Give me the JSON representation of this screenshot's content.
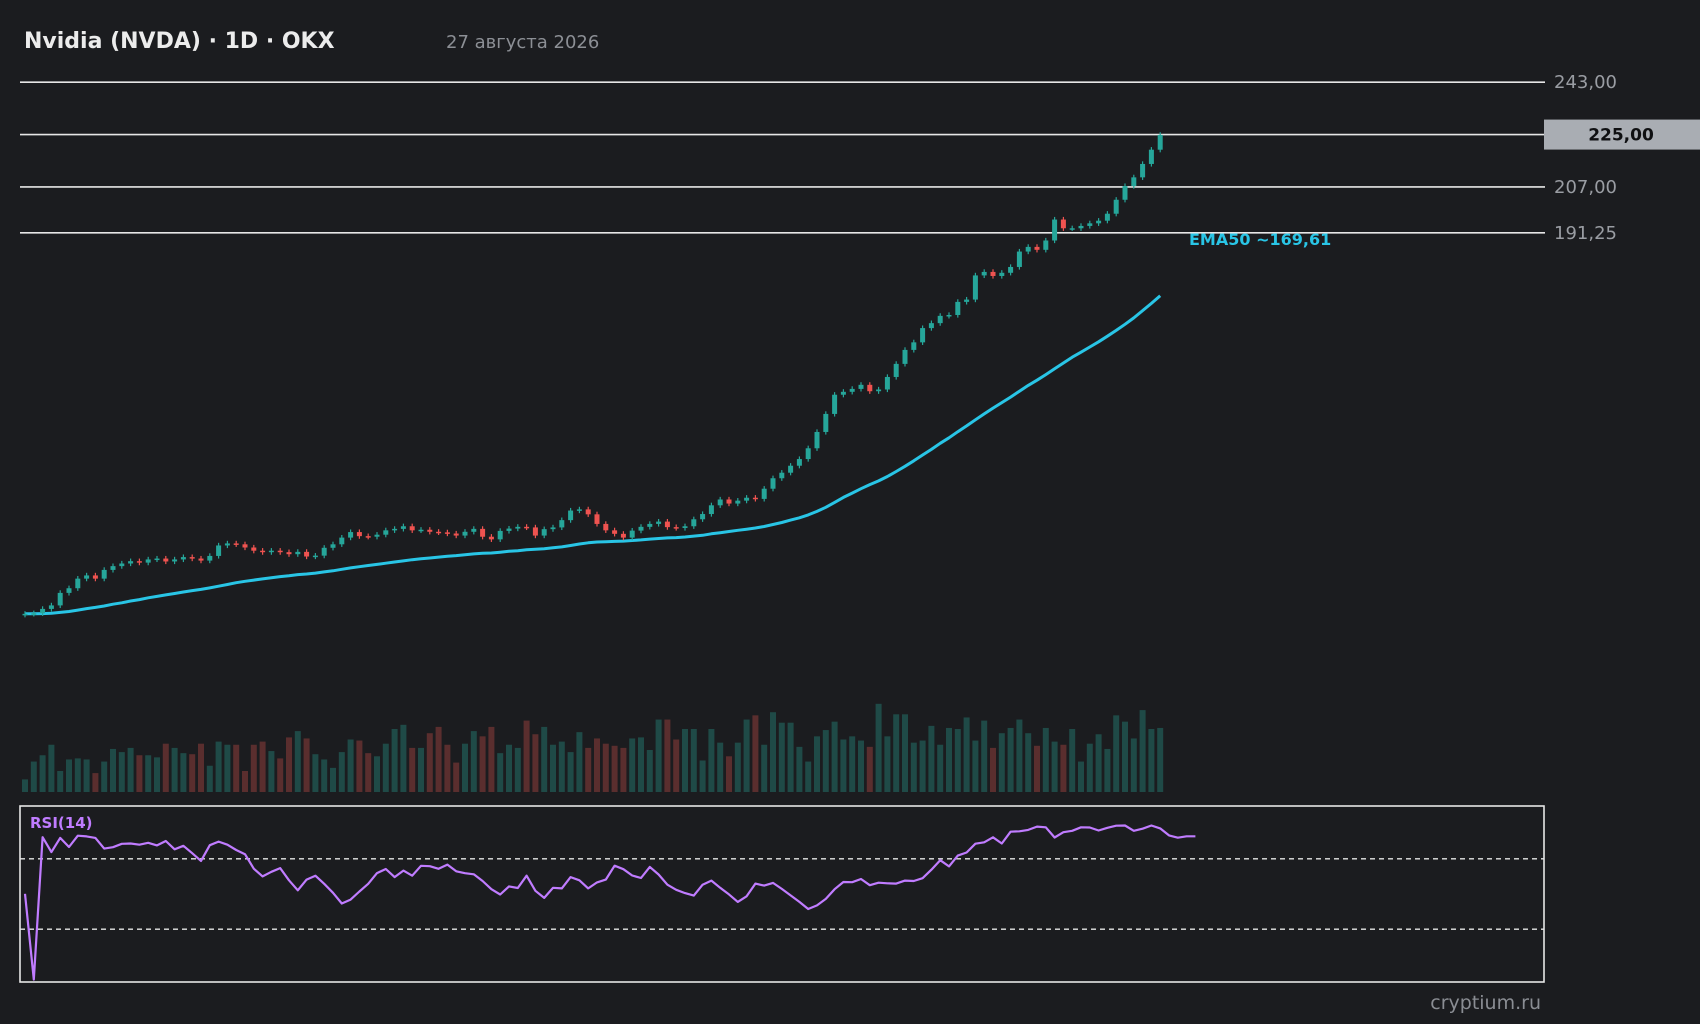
{
  "header": {
    "title": "Nvidia (NVDA) · 1D · OKX",
    "date": "27 августа 2026"
  },
  "levels": [
    {
      "value": 243.0,
      "label": "243,00"
    },
    {
      "value": 207.0,
      "label": "207,00"
    },
    {
      "value": 191.25,
      "label": "191,25"
    }
  ],
  "current_price": {
    "value": 225.0,
    "label": "225,00"
  },
  "ema": {
    "label": "EMA50 ~169,61"
  },
  "rsi": {
    "label": "RSI(14)"
  },
  "watermark": "cryptium.ru",
  "colors": {
    "background": "#1b1c1f",
    "up": "#26a69a",
    "down": "#ef5350",
    "ema": "#29c5e6",
    "rsi": "#c07cff",
    "level_line": "#e6e6e6",
    "current_badge": "#a9adb3",
    "volume_up": "#1f4a47",
    "volume_down": "#5a2e2e"
  },
  "chart_data": {
    "type": "candlestick",
    "timeframe": "1D",
    "y_range": [
      52,
      252
    ],
    "rsi_range": [
      0,
      100
    ],
    "rsi_guides": [
      70,
      30
    ],
    "closes": [
      60.3,
      60.5,
      62.0,
      63.2,
      67.5,
      69.1,
      72.4,
      73.5,
      72.4,
      75.4,
      76.7,
      77.6,
      78.4,
      77.9,
      79.0,
      79.3,
      78.3,
      79.0,
      79.8,
      79.3,
      78.6,
      80.2,
      83.8,
      84.5,
      84.2,
      83.1,
      82.0,
      81.5,
      82.0,
      81.5,
      80.8,
      81.6,
      80.0,
      80.3,
      83.0,
      84.2,
      86.5,
      88.4,
      87.0,
      86.8,
      87.5,
      89.0,
      89.5,
      90.4,
      89.0,
      89.2,
      88.5,
      88.3,
      87.9,
      87.2,
      88.5,
      89.5,
      86.8,
      85.9,
      88.8,
      89.6,
      90.2,
      90.0,
      87.2,
      89.4,
      90.0,
      92.5,
      95.8,
      96.2,
      94.5,
      91.2,
      89.0,
      87.8,
      86.5,
      88.9,
      90.2,
      91.2,
      92.0,
      90.1,
      89.8,
      90.4,
      92.8,
      94.6,
      97.6,
      99.6,
      98.2,
      99.2,
      100.2,
      99.8,
      103.3,
      106.9,
      108.8,
      111.2,
      113.5,
      117.2,
      122.8,
      129.0,
      135.6,
      136.6,
      137.6,
      139.0,
      136.8,
      137.4,
      141.7,
      146.2,
      151.0,
      153.6,
      158.5,
      160.2,
      162.7,
      163.0,
      167.5,
      168.3,
      176.6,
      177.8,
      176.4,
      177.5,
      179.5,
      184.8,
      186.4,
      185.4,
      188.6,
      195.8,
      192.8,
      192.8,
      193.6,
      194.5,
      195.4,
      197.8,
      202.6,
      207.3,
      210.3,
      214.9,
      219.8,
      224.9
    ],
    "ema50": [
      60.3,
      60.3,
      60.4,
      60.5,
      60.8,
      61.1,
      61.6,
      62.1,
      62.5,
      63.0,
      63.6,
      64.1,
      64.7,
      65.2,
      65.8,
      66.3,
      66.8,
      67.3,
      67.8,
      68.3,
      68.7,
      69.2,
      69.8,
      70.4,
      71.0,
      71.5,
      71.9,
      72.3,
      72.7,
      73.1,
      73.4,
      73.8,
      74.0,
      74.3,
      74.7,
      75.1,
      75.6,
      76.1,
      76.5,
      76.9,
      77.3,
      77.7,
      78.1,
      78.5,
      78.9,
      79.2,
      79.5,
      79.8,
      80.1,
      80.3,
      80.6,
      80.9,
      81.1,
      81.2,
      81.5,
      81.8,
      82.0,
      82.3,
      82.5,
      82.7,
      83.0,
      83.3,
      83.8,
      84.3,
      84.7,
      85.0,
      85.1,
      85.2,
      85.3,
      85.5,
      85.7,
      86.0,
      86.2,
      86.4,
      86.5,
      86.7,
      87.0,
      87.3,
      87.8,
      88.2,
      88.6,
      89.0,
      89.4,
      89.8,
      90.3,
      91.0,
      91.7,
      92.5,
      93.3,
      94.3,
      95.5,
      96.9,
      98.6,
      100.3,
      101.8,
      103.3,
      104.7,
      106.0,
      107.5,
      109.2,
      111.0,
      112.9,
      114.9,
      116.8,
      118.9,
      120.8,
      122.9,
      124.9,
      127.0,
      129.0,
      131.0,
      132.9,
      134.8,
      136.8,
      138.8,
      140.6,
      142.5,
      144.5,
      146.5,
      148.5,
      150.2,
      152.0,
      153.8,
      155.7,
      157.7,
      159.8,
      162.0,
      164.5,
      167.0,
      169.6
    ],
    "rsi14": [
      50.1,
      1.4,
      82.3,
      73.8,
      81.9,
      76.7,
      83.1,
      82.7,
      81.9,
      75.8,
      76.6,
      78.5,
      78.7,
      78.0,
      79.1,
      77.6,
      80.1,
      75.4,
      77.4,
      73.2,
      68.8,
      77.7,
      79.8,
      78.0,
      75.0,
      72.6,
      64.4,
      60.0,
      62.6,
      64.7,
      57.8,
      52.1,
      58.2,
      60.4,
      55.8,
      50.7,
      44.6,
      46.8,
      51.4,
      55.8,
      61.9,
      64.2,
      59.6,
      63.3,
      60.4,
      66.0,
      65.8,
      64.3,
      66.7,
      62.9,
      61.8,
      61.2,
      57.4,
      52.7,
      49.7,
      54.3,
      53.4,
      60.4,
      51.8,
      47.8,
      53.5,
      53.2,
      59.6,
      57.8,
      53.2,
      56.6,
      58.2,
      66.1,
      64.1,
      60.5,
      59.1,
      65.4,
      61.1,
      55.3,
      52.4,
      50.5,
      49.1,
      55.3,
      57.6,
      53.5,
      49.8,
      45.5,
      48.7,
      55.9,
      54.8,
      56.3,
      52.9,
      49.2,
      45.5,
      41.5,
      43.5,
      47.2,
      52.7,
      56.8,
      56.7,
      58.5,
      55.0,
      56.4,
      56.1,
      55.9,
      57.6,
      57.4,
      59.0,
      63.8,
      69.2,
      65.7,
      71.8,
      73.6,
      78.6,
      79.4,
      82.2,
      78.7,
      85.4,
      85.6,
      86.4,
      88.3,
      87.9,
      82.1,
      85.1,
      85.9,
      87.9,
      87.8,
      86.1,
      87.6,
      88.8,
      88.9,
      85.9,
      87.1,
      88.9,
      87.3,
      83.3,
      82.0,
      82.8,
      82.8
    ],
    "volume": [
      0.12,
      0.29,
      0.35,
      0.45,
      0.2,
      0.31,
      0.32,
      0.31,
      0.18,
      0.29,
      0.41,
      0.38,
      0.42,
      0.35,
      0.35,
      0.33,
      0.46,
      0.42,
      0.37,
      0.36,
      0.46,
      0.25,
      0.48,
      0.45,
      0.45,
      0.2,
      0.45,
      0.48,
      0.39,
      0.32,
      0.52,
      0.58,
      0.51,
      0.36,
      0.31,
      0.23,
      0.38,
      0.5,
      0.49,
      0.37,
      0.34,
      0.46,
      0.6,
      0.64,
      0.42,
      0.42,
      0.56,
      0.62,
      0.45,
      0.28,
      0.46,
      0.58,
      0.53,
      0.62,
      0.37,
      0.45,
      0.42,
      0.68,
      0.55,
      0.62,
      0.45,
      0.48,
      0.38,
      0.57,
      0.42,
      0.51,
      0.46,
      0.44,
      0.42,
      0.51,
      0.52,
      0.4,
      0.69,
      0.69,
      0.5,
      0.6,
      0.6,
      0.3,
      0.6,
      0.47,
      0.34,
      0.47,
      0.69,
      0.73,
      0.45,
      0.76,
      0.66,
      0.66,
      0.43,
      0.29,
      0.53,
      0.59,
      0.67,
      0.5,
      0.53,
      0.49,
      0.43,
      0.84,
      0.53,
      0.74,
      0.74,
      0.47,
      0.49,
      0.63,
      0.45,
      0.61,
      0.6,
      0.71,
      0.49,
      0.68,
      0.42,
      0.56,
      0.61,
      0.69,
      0.56,
      0.44,
      0.61,
      0.48,
      0.45,
      0.6,
      0.29,
      0.46,
      0.55,
      0.41,
      0.73,
      0.67,
      0.51,
      0.78,
      0.6,
      0.61,
      0.39,
      0.68,
      0.75,
      0.62
    ]
  }
}
